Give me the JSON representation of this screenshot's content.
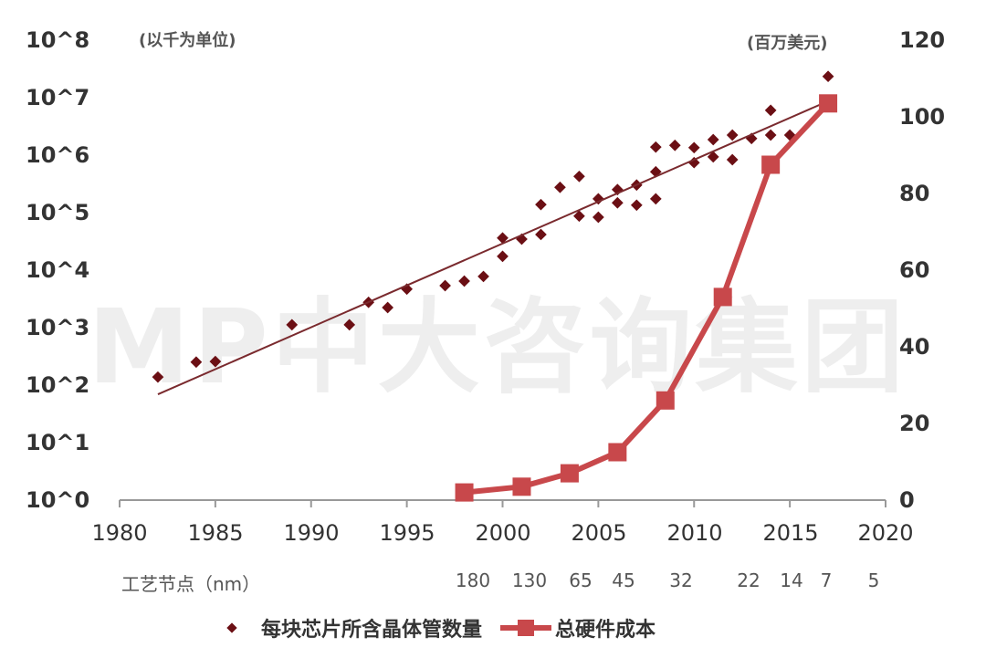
{
  "watermark": "MP中大咨询集团",
  "left_axis": {
    "unit": "(以千为单位)",
    "ticks": [
      "10^8",
      "10^7",
      "10^6",
      "10^5",
      "10^4",
      "10^3",
      "10^2",
      "10^1",
      "10^0"
    ]
  },
  "right_axis": {
    "unit": "(百万美元)",
    "ticks": [
      "120",
      "100",
      "80",
      "60",
      "40",
      "20",
      "0"
    ]
  },
  "x_axis": {
    "ticks": [
      "1980",
      "1985",
      "1990",
      "1995",
      "2000",
      "2005",
      "2010",
      "2015",
      "2020"
    ]
  },
  "process_node": {
    "title": "工艺节点（nm）",
    "labels": [
      "180",
      "130",
      "65",
      "45",
      "32",
      "22",
      "14",
      "7",
      "5"
    ]
  },
  "legend": {
    "scatter_label": "每块芯片所含晶体管数量",
    "line_label": "总硬件成本"
  },
  "colors": {
    "scatter": "#6b0f14",
    "trendline": "#7a2a2e",
    "line": "#c8484b",
    "axis": "#999999",
    "text": "#333333"
  },
  "chart_data": {
    "type": "scatter+line",
    "title": "",
    "xlabel": "",
    "ylabel_left": "(以千为单位)",
    "ylabel_right": "(百万美元)",
    "x_range": [
      1980,
      2020
    ],
    "ylim_left_log10": [
      0,
      8
    ],
    "ylim_right": [
      0,
      120
    ],
    "grid": false,
    "legend_position": "bottom",
    "secondary_x_labels": {
      "title": "工艺节点（nm）",
      "labels": [
        "180",
        "130",
        "65",
        "45",
        "32",
        "22",
        "14",
        "7",
        "5"
      ]
    },
    "series": [
      {
        "name": "每块芯片所含晶体管数量",
        "type": "scatter",
        "axis": "left",
        "scale": "log10 (thousands)",
        "x": [
          1982,
          1984,
          1985,
          1989,
          1992,
          1993,
          1994,
          1995,
          1997,
          1998,
          1999,
          2000,
          2000,
          2001,
          2002,
          2002,
          2003,
          2004,
          2004,
          2005,
          2005,
          2006,
          2006,
          2007,
          2007,
          2008,
          2008,
          2008,
          2009,
          2010,
          2010,
          2011,
          2011,
          2012,
          2012,
          2013,
          2014,
          2014,
          2015,
          2017
        ],
        "log10_values": [
          2.14,
          2.4,
          2.41,
          3.05,
          3.05,
          3.44,
          3.35,
          3.67,
          3.73,
          3.81,
          3.89,
          4.56,
          4.24,
          4.54,
          4.62,
          5.14,
          5.44,
          5.63,
          4.94,
          5.24,
          4.92,
          5.4,
          5.17,
          5.48,
          5.13,
          6.14,
          5.71,
          5.24,
          6.17,
          6.13,
          5.87,
          5.97,
          6.27,
          6.35,
          5.92,
          6.29,
          6.78,
          6.35,
          6.35,
          7.37
        ]
      },
      {
        "name": "趋势线",
        "type": "line",
        "axis": "left",
        "x": [
          1982,
          2017
        ],
        "log10_values": [
          1.84,
          6.94
        ]
      },
      {
        "name": "总硬件成本",
        "type": "line",
        "axis": "right",
        "x": [
          1998,
          2001,
          2003.5,
          2006,
          2008.5,
          2011.5,
          2014,
          2017
        ],
        "values": [
          2,
          3.5,
          7,
          12.5,
          26,
          53,
          87.5,
          103.5
        ]
      }
    ]
  }
}
